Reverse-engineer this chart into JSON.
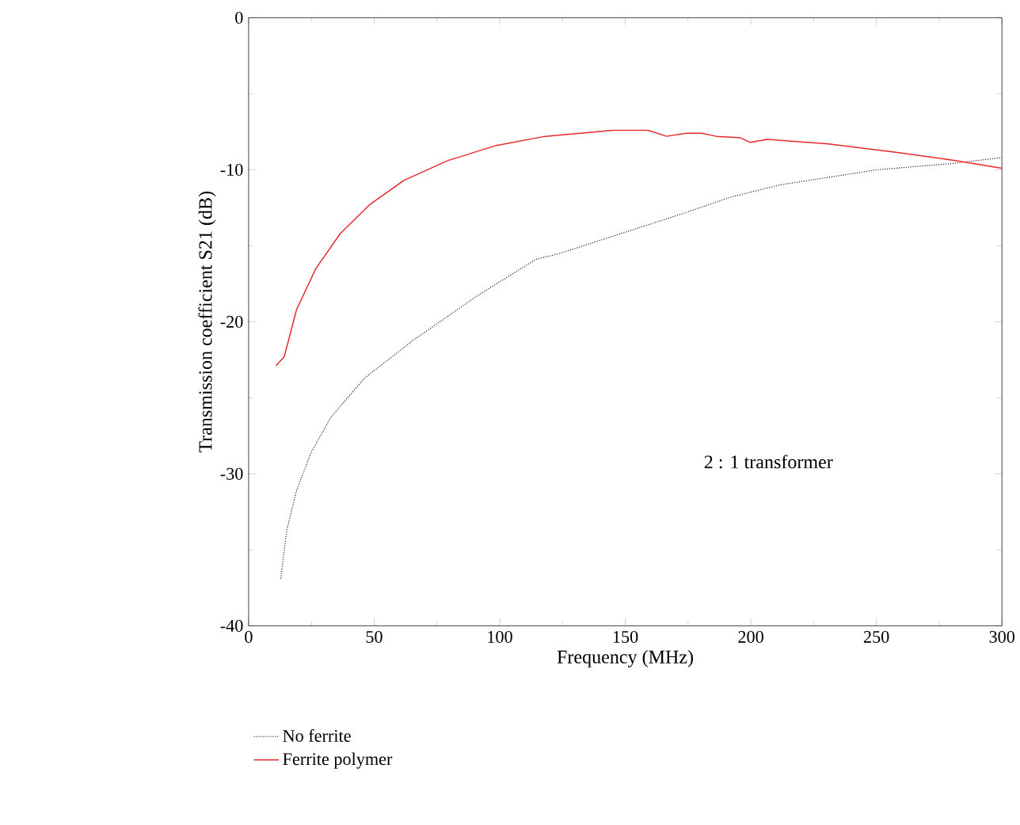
{
  "chart_data": {
    "type": "line",
    "xlabel": "Frequency (MHz)",
    "ylabel": "Transmission coefficient S21 (dB)",
    "annotations": [
      "2 : 1 transformer"
    ],
    "xlim": [
      0,
      300
    ],
    "xticks": [
      0,
      50,
      100,
      150,
      200,
      250,
      300
    ],
    "ylim": [
      -40,
      0
    ],
    "yticks": [
      -40,
      -30,
      -20,
      -10,
      0
    ],
    "grid": false,
    "legend": "bottom left",
    "marker": "none",
    "series": [
      {
        "name": "No ferrite",
        "color": "#000000",
        "line_style": "dotted",
        "x": [
          12.8,
          15.2,
          19.1,
          24.9,
          32.7,
          46.2,
          65.7,
          91,
          114.3,
          124,
          172.6,
          192,
          211.5,
          250.3,
          279.5,
          299.9
        ],
        "values": [
          -36.9,
          -33.7,
          -31.1,
          -28.6,
          -26.3,
          -23.7,
          -21.2,
          -18.3,
          -15.9,
          -15.5,
          -12.9,
          -11.8,
          -11.0,
          -10.0,
          -9.6,
          -9.2
        ]
      },
      {
        "name": "Ferrite polymer",
        "color": "#e8282b",
        "line_style": "solid",
        "x": [
          10.9,
          14.2,
          19.1,
          26.8,
          36.5,
          48.2,
          61.8,
          79.3,
          98.7,
          118.2,
          145.4,
          159,
          166.4,
          174.5,
          180.4,
          186.2,
          195.9,
          199.8,
          206.6,
          230.9,
          260,
          281.4,
          299.9
        ],
        "values": [
          -22.9,
          -22.3,
          -19.2,
          -16.5,
          -14.2,
          -12.3,
          -10.7,
          -9.4,
          -8.4,
          -7.8,
          -7.4,
          -7.4,
          -7.8,
          -7.6,
          -7.6,
          -7.8,
          -7.9,
          -8.2,
          -8.0,
          -8.3,
          -8.9,
          -9.4,
          -9.9
        ]
      }
    ]
  }
}
